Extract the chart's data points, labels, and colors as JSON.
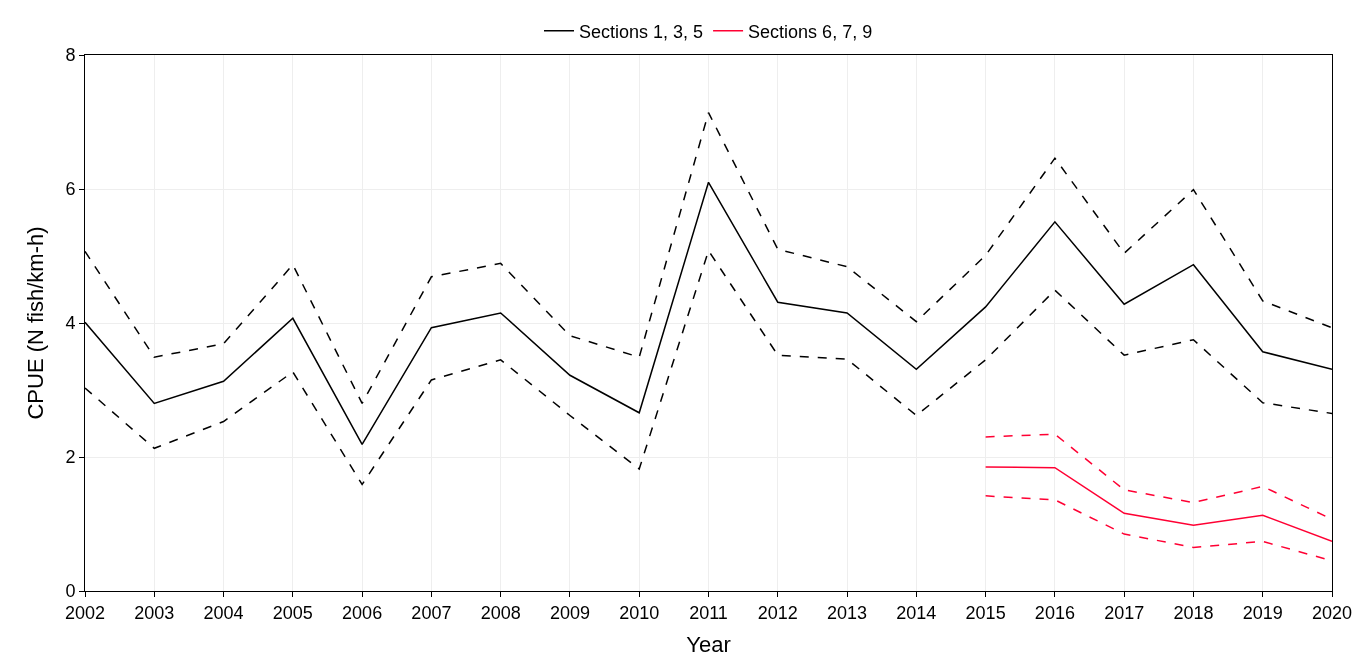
{
  "chart_data": {
    "type": "line",
    "xlabel": "Year",
    "ylabel": "CPUE (N fish/km-h)",
    "x": [
      2002,
      2003,
      2004,
      2005,
      2006,
      2007,
      2008,
      2009,
      2010,
      2011,
      2012,
      2013,
      2014,
      2015,
      2016,
      2017,
      2018,
      2019,
      2020
    ],
    "series": [
      {
        "name": "Sections 1, 3, 5",
        "color": "#000000",
        "values": [
          4.01,
          2.8,
          3.13,
          4.07,
          2.19,
          3.93,
          4.15,
          3.22,
          2.66,
          6.1,
          4.31,
          4.15,
          3.31,
          4.24,
          5.51,
          4.28,
          4.87,
          3.57,
          3.31
        ]
      },
      {
        "color": "#000000",
        "line_style": "dashed",
        "values": [
          3.03,
          2.13,
          2.53,
          3.27,
          1.59,
          3.15,
          3.45,
          2.62,
          1.82,
          5.08,
          3.52,
          3.46,
          2.62,
          3.45,
          4.49,
          3.52,
          3.75,
          2.81,
          2.65
        ]
      },
      {
        "color": "#000000",
        "line_style": "dashed",
        "values": [
          5.07,
          3.49,
          3.69,
          4.87,
          2.8,
          4.69,
          4.89,
          3.81,
          3.49,
          7.14,
          5.1,
          4.84,
          4.02,
          5.01,
          6.46,
          5.04,
          5.99,
          4.33,
          3.93
        ]
      },
      {
        "name": "Sections 6, 7, 9",
        "color": "#ff0033",
        "x": [
          2015,
          2016,
          2017,
          2018,
          2019,
          2020
        ],
        "values": [
          1.85,
          1.84,
          1.16,
          0.98,
          1.13,
          0.74
        ]
      },
      {
        "color": "#ff0033",
        "line_style": "dashed",
        "x": [
          2015,
          2016,
          2017,
          2018,
          2019,
          2020
        ],
        "values": [
          1.42,
          1.36,
          0.85,
          0.65,
          0.74,
          0.45
        ]
      },
      {
        "color": "#ff0033",
        "line_style": "dashed",
        "x": [
          2015,
          2016,
          2017,
          2018,
          2019,
          2020
        ],
        "values": [
          2.3,
          2.34,
          1.51,
          1.32,
          1.56,
          1.07
        ]
      }
    ],
    "xlim": [
      2002,
      2020
    ],
    "xticks": [
      2002,
      2003,
      2004,
      2005,
      2006,
      2007,
      2008,
      2009,
      2010,
      2011,
      2012,
      2013,
      2014,
      2015,
      2016,
      2017,
      2018,
      2019,
      2020
    ],
    "ylim": [
      0,
      8
    ],
    "yticks": [
      0,
      2,
      4,
      6,
      8
    ],
    "grid": true,
    "legend": "top",
    "line_style": "solid",
    "marker": "none"
  }
}
